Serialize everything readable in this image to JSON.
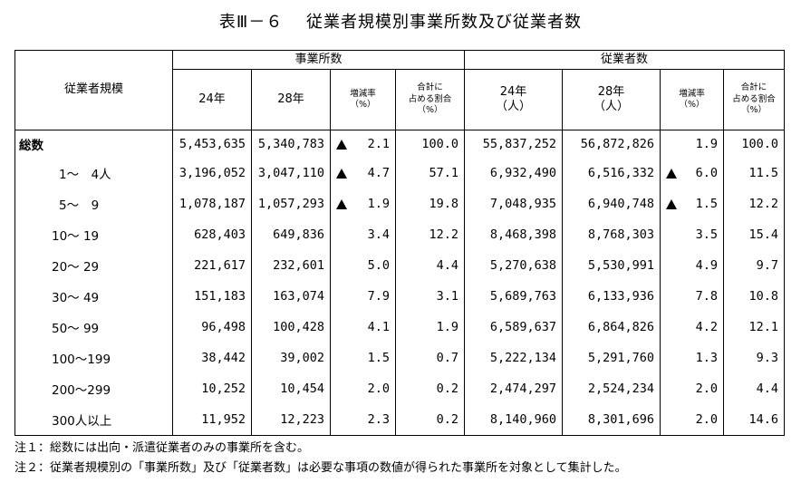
{
  "title": "表Ⅲ－６　 従業者規模別事業所数及び従業者数",
  "headers": {
    "size": "従業者規模",
    "establishments": "事業所数",
    "employees": "従業者数",
    "y24": "24年",
    "y28": "28年",
    "y24_people_l1": "24年",
    "y24_people_l2": "（人）",
    "y28_people_l1": "28年",
    "y28_people_l2": "（人）",
    "rate_l1": "増減率",
    "rate_l2": "（%）",
    "share_l1": "合計に",
    "share_l2": "占める割合",
    "share_l3": "（%）"
  },
  "rows": [
    {
      "label": "総数",
      "e24": "5,453,635",
      "e28": "5,340,783",
      "erate_neg": true,
      "erate": "2.1",
      "eshare": "100.0",
      "p24": "55,837,252",
      "p28": "56,872,826",
      "prate_neg": false,
      "prate": "1.9",
      "pshare": "100.0"
    },
    {
      "label": "1～　4人",
      "e24": "3,196,052",
      "e28": "3,047,110",
      "erate_neg": true,
      "erate": "4.7",
      "eshare": "57.1",
      "p24": "6,932,490",
      "p28": "6,516,332",
      "prate_neg": true,
      "prate": "6.0",
      "pshare": "11.5"
    },
    {
      "label": "5～　9",
      "e24": "1,078,187",
      "e28": "1,057,293",
      "erate_neg": true,
      "erate": "1.9",
      "eshare": "19.8",
      "p24": "7,048,935",
      "p28": "6,940,748",
      "prate_neg": true,
      "prate": "1.5",
      "pshare": "12.2"
    },
    {
      "label": "10～ 19",
      "e24": "628,403",
      "e28": "649,836",
      "erate_neg": false,
      "erate": "3.4",
      "eshare": "12.2",
      "p24": "8,468,398",
      "p28": "8,768,303",
      "prate_neg": false,
      "prate": "3.5",
      "pshare": "15.4"
    },
    {
      "label": "20～ 29",
      "e24": "221,617",
      "e28": "232,601",
      "erate_neg": false,
      "erate": "5.0",
      "eshare": "4.4",
      "p24": "5,270,638",
      "p28": "5,530,991",
      "prate_neg": false,
      "prate": "4.9",
      "pshare": "9.7"
    },
    {
      "label": "30～ 49",
      "e24": "151,183",
      "e28": "163,074",
      "erate_neg": false,
      "erate": "7.9",
      "eshare": "3.1",
      "p24": "5,689,763",
      "p28": "6,133,936",
      "prate_neg": false,
      "prate": "7.8",
      "pshare": "10.8"
    },
    {
      "label": "50～ 99",
      "e24": "96,498",
      "e28": "100,428",
      "erate_neg": false,
      "erate": "4.1",
      "eshare": "1.9",
      "p24": "6,589,637",
      "p28": "6,864,826",
      "prate_neg": false,
      "prate": "4.2",
      "pshare": "12.1"
    },
    {
      "label": "100～199",
      "e24": "38,442",
      "e28": "39,002",
      "erate_neg": false,
      "erate": "1.5",
      "eshare": "0.7",
      "p24": "5,222,134",
      "p28": "5,291,760",
      "prate_neg": false,
      "prate": "1.3",
      "pshare": "9.3"
    },
    {
      "label": "200～299",
      "e24": "10,252",
      "e28": "10,454",
      "erate_neg": false,
      "erate": "2.0",
      "eshare": "0.2",
      "p24": "2,474,297",
      "p28": "2,524,234",
      "prate_neg": false,
      "prate": "2.0",
      "pshare": "4.4"
    },
    {
      "label": "300人以上",
      "e24": "11,952",
      "e28": "12,223",
      "erate_neg": false,
      "erate": "2.3",
      "eshare": "0.2",
      "p24": "8,140,960",
      "p28": "8,301,696",
      "prate_neg": false,
      "prate": "2.0",
      "pshare": "14.6"
    }
  ],
  "notes": [
    "注１：総数には出向・派遣従業者のみの事業所を含む。",
    "注２：従業者規模別の「事業所数」及び「従業者数」は必要な事項の数値が得られた事業所を対象として集計した。"
  ]
}
